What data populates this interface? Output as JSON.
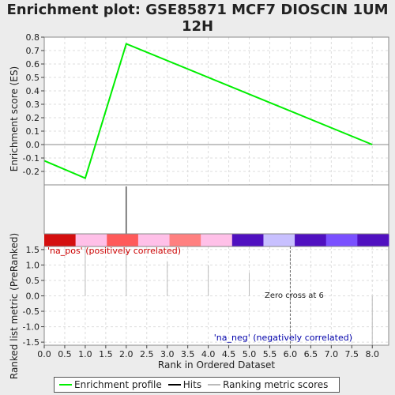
{
  "title": "Enrichment plot: GSE85871 MCF7 DIOSCIN 1UM 12H",
  "colors": {
    "enrichment": "#00ee00",
    "hits": "#000000",
    "ranking": "#bbbbbb",
    "pos_label": "#cc0000",
    "neg_label": "#0000aa"
  },
  "legend": [
    {
      "label": "Enrichment profile",
      "color": "#00ee00"
    },
    {
      "label": "Hits",
      "color": "#000000"
    },
    {
      "label": "Ranking metric scores",
      "color": "#bbbbbb"
    }
  ],
  "chart_data": {
    "type": "line",
    "x_label": "Rank in Ordered Dataset",
    "xlim": [
      0,
      8.4
    ],
    "x_ticks": [
      "0.0",
      "0.5",
      "1.0",
      "1.5",
      "2.0",
      "2.5",
      "3.0",
      "3.5",
      "4.0",
      "4.5",
      "5.0",
      "5.5",
      "6.0",
      "6.5",
      "7.0",
      "7.5",
      "8.0"
    ],
    "grid": true,
    "enrichment": {
      "y_label": "Enrichment score (ES)",
      "ylim": [
        -0.3,
        0.8
      ],
      "y_ticks": [
        "0.8",
        "0.7",
        "0.6",
        "0.5",
        "0.4",
        "0.3",
        "0.2",
        "0.1",
        "0.0",
        "-0.1",
        "-0.2"
      ],
      "x": [
        0,
        1,
        2,
        8
      ],
      "y": [
        -0.12,
        -0.25,
        0.75,
        0.0
      ]
    },
    "hits": {
      "x": [
        2
      ]
    },
    "color_bar": [
      "#d40f0f",
      "#ffc0e8",
      "#ff5a5a",
      "#ffc0e8",
      "#ff8080",
      "#ffc0e8",
      "#5010c0",
      "#c8c0ff",
      "#5010c0",
      "#7a50ff",
      "#5010c0"
    ],
    "ranking": {
      "y_label": "Ranked list metric (PreRanked)",
      "ylim": [
        -1.6,
        1.6
      ],
      "y_ticks": [
        "1.5",
        "1.0",
        "0.5",
        "0.0",
        "-0.5",
        "-1.0",
        "-1.5"
      ],
      "x": [
        1,
        2,
        3,
        4,
        5,
        6,
        7,
        8
      ],
      "values": [
        1.75,
        1.45,
        1.1,
        1.0,
        0.75,
        -0.2,
        0,
        -1.8
      ]
    },
    "annotations": {
      "pos": "'na_pos' (positively correlated)",
      "neg": "'na_neg' (negatively correlated)",
      "zero_cross": "Zero cross at 6"
    },
    "zero_cross_x": 6
  }
}
